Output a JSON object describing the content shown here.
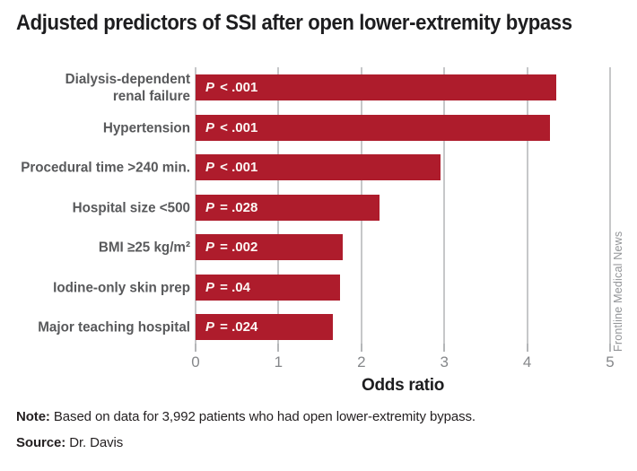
{
  "title": "Adjusted predictors of SSI after open lower-extremity bypass",
  "chart_data": {
    "type": "bar",
    "orientation": "horizontal",
    "categories": [
      "Dialysis-dependent\nrenal failure",
      "Hypertension",
      "Procedural time >240 min.",
      "Hospital size <500",
      "BMI ≥25 kg/m²",
      "Iodine-only skin prep",
      "Major teaching hospital"
    ],
    "values": [
      4.35,
      4.27,
      2.95,
      2.22,
      1.78,
      1.74,
      1.66
    ],
    "bar_labels": [
      "P < .001",
      "P < .001",
      "P < .001",
      "P = .028",
      "P = .002",
      "P = .04",
      "P = .024"
    ],
    "xlabel": "Odds ratio",
    "ylabel": "",
    "xlim": [
      0,
      5
    ],
    "xticks": [
      0,
      1,
      2,
      3,
      4,
      5
    ],
    "grid": true,
    "legend": "none",
    "bar_color": "#ae1c2c",
    "gridline_color": "#c6c7c9",
    "category_label_color": "#58595b",
    "tick_label_color": "#85878a"
  },
  "footer": {
    "note_label": "Note:",
    "note_text": " Based on data for 3,992 patients who had open lower-extremity bypass.",
    "source_label": "Source:",
    "source_text": " Dr. Davis"
  },
  "credit": "Frontline Medical News"
}
